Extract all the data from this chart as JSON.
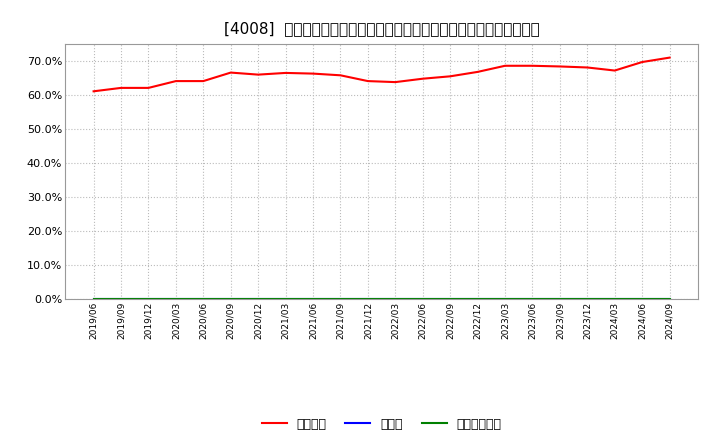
{
  "title": "[4008]  自己資本、のれん、繰延税金資産の総資産に対する比率の推移",
  "ylim": [
    0.0,
    0.75
  ],
  "yticks": [
    0.0,
    0.1,
    0.2,
    0.3,
    0.4,
    0.5,
    0.6,
    0.7
  ],
  "x_labels": [
    "2019/06",
    "2019/09",
    "2019/12",
    "2020/03",
    "2020/06",
    "2020/09",
    "2020/12",
    "2021/03",
    "2021/06",
    "2021/09",
    "2021/12",
    "2022/03",
    "2022/06",
    "2022/09",
    "2022/12",
    "2023/03",
    "2023/06",
    "2023/09",
    "2023/12",
    "2024/03",
    "2024/06",
    "2024/09"
  ],
  "jikoshihon": [
    0.611,
    0.621,
    0.621,
    0.641,
    0.641,
    0.666,
    0.66,
    0.665,
    0.663,
    0.658,
    0.641,
    0.638,
    0.648,
    0.655,
    0.668,
    0.686,
    0.686,
    0.684,
    0.681,
    0.672,
    0.697,
    0.71
  ],
  "noren": [
    0.0,
    0.0,
    0.0,
    0.0,
    0.0,
    0.0,
    0.0,
    0.0,
    0.0,
    0.0,
    0.0,
    0.0,
    0.0,
    0.0,
    0.0,
    0.0,
    0.0,
    0.0,
    0.0,
    0.0,
    0.0,
    0.0
  ],
  "kurinobezeikinsisan": [
    0.0,
    0.0,
    0.0,
    0.0,
    0.0,
    0.0,
    0.0,
    0.0,
    0.0,
    0.0,
    0.0,
    0.0,
    0.0,
    0.0,
    0.0,
    0.0,
    0.0,
    0.0,
    0.0,
    0.0,
    0.0,
    0.0
  ],
  "line_color_jikoshihon": "#ff0000",
  "line_color_noren": "#0000ff",
  "line_color_kurinobe": "#008000",
  "legend_labels": [
    "自己資本",
    "のれん",
    "繰延税金資産"
  ],
  "background_color": "#ffffff",
  "grid_color": "#bbbbbb",
  "title_fontsize": 11
}
